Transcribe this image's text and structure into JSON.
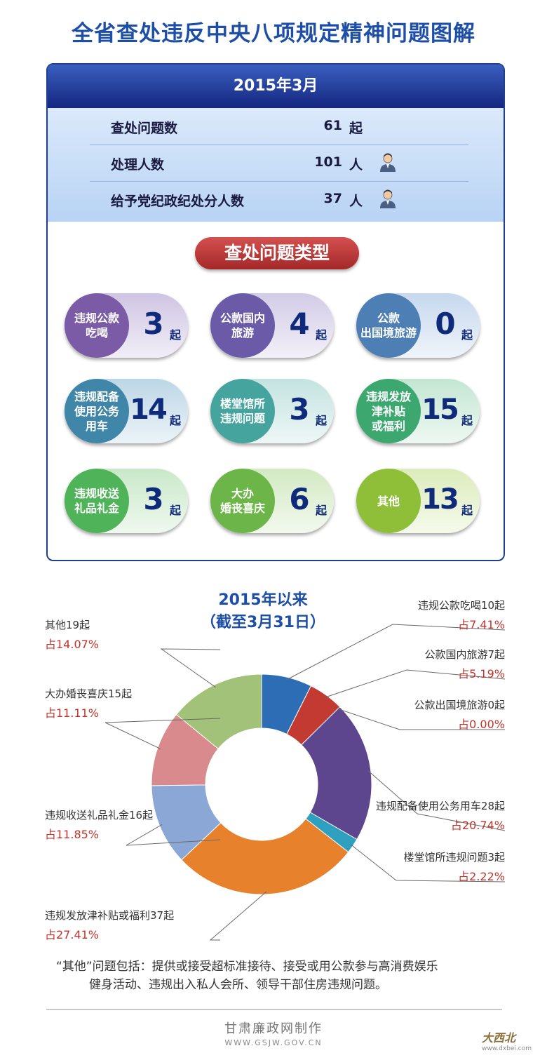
{
  "title": "全省查处违反中央八项规定精神问题图解",
  "monthly": {
    "header": "2015年3月",
    "stats": [
      {
        "label": "查处问题数",
        "value": "61",
        "unit": "起",
        "icon": ""
      },
      {
        "label": "处理人数",
        "value": "101",
        "unit": "人",
        "icon": "person-icon"
      },
      {
        "label": "给予党纪政纪处分人数",
        "value": "37",
        "unit": "人",
        "icon": "person-icon"
      }
    ],
    "types_title": "查处问题类型",
    "types": [
      {
        "label": "违规公款\n吃喝",
        "count": "3",
        "unit": "起",
        "color": "#7b5aa6",
        "bg": "#cfc4e3"
      },
      {
        "label": "公款国内\n旅游",
        "count": "4",
        "unit": "起",
        "color": "#6a5aa8",
        "bg": "#d2cbe6"
      },
      {
        "label": "公款\n出国境旅游",
        "count": "0",
        "unit": "起",
        "color": "#4d7fb5",
        "bg": "#c6d8ee"
      },
      {
        "label": "违规配备\n使用公务\n用车",
        "count": "14",
        "unit": "起",
        "color": "#3f86a8",
        "bg": "#bcd6e6"
      },
      {
        "label": "楼堂馆所\n违规问题",
        "count": "3",
        "unit": "起",
        "color": "#45a59e",
        "bg": "#c3e3e0"
      },
      {
        "label": "违规发放\n津补贴\n或福利",
        "count": "15",
        "unit": "起",
        "color": "#3ca870",
        "bg": "#c3e6d2"
      },
      {
        "label": "违规收送\n礼品礼金",
        "count": "3",
        "unit": "起",
        "color": "#4fb35a",
        "bg": "#c9e8c8"
      },
      {
        "label": "大办\n婚丧喜庆",
        "count": "6",
        "unit": "起",
        "color": "#6cb548",
        "bg": "#d2e9c2"
      },
      {
        "label": "其他",
        "count": "13",
        "unit": "起",
        "color": "#8fbf38",
        "bg": "#dcecbb"
      }
    ]
  },
  "cumulative": {
    "title_line1": "2015年以来",
    "title_line2": "（截至3月31日）"
  },
  "chart_data": {
    "type": "pie",
    "title": "2015年以来（截至3月31日）",
    "categories": [
      "违规公款吃喝",
      "公款国内旅游",
      "公款出国境旅游",
      "违规配备使用公务用车",
      "楼堂馆所违规问题",
      "违规发放津补贴或福利",
      "违规收送礼品礼金",
      "大办婚丧喜庆",
      "其他"
    ],
    "values": [
      10,
      7,
      0,
      28,
      3,
      37,
      16,
      15,
      19
    ],
    "labels": [
      "违规公款吃喝10起",
      "公款国内旅游7起",
      "公款出国境旅游0起",
      "违规配备使用公务用车28起",
      "楼堂馆所违规问题3起",
      "违规发放津补贴或福利37起",
      "违规收送礼品礼金16起",
      "大办婚丧喜庆15起",
      "其他19起"
    ],
    "percents": [
      "占7.41%",
      "占5.19%",
      "占0.00%",
      "占20.74%",
      "占2.22%",
      "占27.41%",
      "占11.85%",
      "占11.11%",
      "占14.07%"
    ],
    "colors": [
      "#2d6db5",
      "#c23a32",
      "#b0b0b0",
      "#5e468f",
      "#2fa0c0",
      "#e8812c",
      "#8ba7d6",
      "#d88a8c",
      "#a2c27a"
    ],
    "donut": true
  },
  "note": {
    "line1": "“其他”问题包括：提供或接受超标准接待、接受或用公款参与高消费娱乐",
    "line2": "健身活动、违规出入私人会所、领导干部住房违规问题。"
  },
  "footer": {
    "maker": "甘肃廉政网制作",
    "url": "WWW.GSJW.GOV.CN"
  },
  "watermark": {
    "text": "大西北",
    "url": "www.dxbei.com"
  }
}
